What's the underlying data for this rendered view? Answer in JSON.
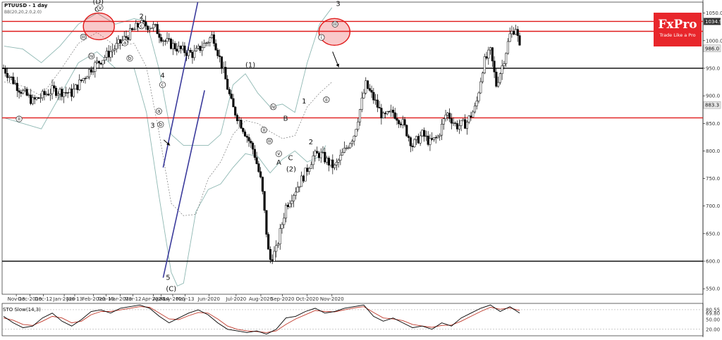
{
  "instrument": "PTUUSD - 1 day",
  "indicator_label": "BB(20,20,2.0,2.0)",
  "oscillator_label": "STO Slow(14,3)",
  "brand": {
    "name": "FxPro",
    "tagline": "Trade Like a Pro",
    "color": "#e8262b"
  },
  "colors": {
    "bull": "#1e8c1e",
    "bear": "#d01010",
    "wick": "#000000",
    "channel": "#3b3b9c",
    "resistance": "#e01a1a",
    "support": "#000000",
    "bb": "#8fb8b3",
    "sto_k": "#000000",
    "sto_d": "#c0392b"
  },
  "chart_data": {
    "type": "line",
    "title": "PTUUSD - 1 day",
    "ylim": [
      540,
      1070
    ],
    "yticks": [
      "1050.0",
      "1000.0",
      "950.0",
      "900.0",
      "850.0",
      "800.0",
      "750.0",
      "700.0",
      "650.0",
      "600.0",
      "550.0"
    ],
    "x_labels": [
      "Nov-13",
      "Dec-2019",
      "Dec-12",
      "Jan-2020",
      "Jan-13",
      "Feb-2020",
      "Feb-13",
      "Mar-2020",
      "Mar-12",
      "Apr-2020",
      "Apr-14",
      "May-2020",
      "May-13",
      "Jun-2020",
      "Jul-2020",
      "Aug-2020",
      "Sep-2020",
      "Oct-2020",
      "Nov-2020"
    ],
    "price_tags": [
      {
        "text": "1034.9",
        "value": 1034.9,
        "style": "dark"
      },
      {
        "text": "986.0",
        "value": 986.0,
        "style": "light"
      },
      {
        "text": "883.3",
        "value": 883.3,
        "style": "light"
      }
    ],
    "horizontal_levels": [
      {
        "value": 1035,
        "kind": "resistance"
      },
      {
        "value": 1017,
        "kind": "resistance"
      },
      {
        "value": 950,
        "kind": "support"
      },
      {
        "value": 860,
        "kind": "resistance"
      },
      {
        "value": 600,
        "kind": "support"
      }
    ],
    "channel": {
      "upper": [
        [
          25.7,
          770
        ],
        [
          31.3,
          1070
        ]
      ],
      "lower": [
        [
          25.7,
          570
        ],
        [
          32.4,
          910
        ]
      ]
    },
    "close_path": [
      [
        0,
        950
      ],
      [
        1.5,
        915
      ],
      [
        3,
        890
      ],
      [
        5,
        910
      ],
      [
        7,
        905
      ],
      [
        9,
        950
      ],
      [
        11,
        980
      ],
      [
        12.5,
        1005
      ],
      [
        14,
        1030
      ],
      [
        15.5,
        1025
      ],
      [
        16.5,
        1000
      ],
      [
        18,
        985
      ],
      [
        19.5,
        975
      ],
      [
        21,
        1000
      ],
      [
        21.5,
        1010
      ],
      [
        22.5,
        950
      ],
      [
        23.5,
        880
      ],
      [
        24.5,
        845
      ],
      [
        25.7,
        800
      ],
      [
        26.5,
        740
      ],
      [
        27.3,
        600
      ],
      [
        28,
        620
      ],
      [
        29,
        700
      ],
      [
        30,
        730
      ],
      [
        31,
        760
      ],
      [
        31.8,
        790
      ],
      [
        32.5,
        795
      ],
      [
        33.3,
        780
      ],
      [
        34,
        770
      ],
      [
        35,
        800
      ],
      [
        36,
        830
      ],
      [
        37.2,
        920
      ],
      [
        38,
        895
      ],
      [
        39,
        860
      ],
      [
        40,
        870
      ],
      [
        41,
        850
      ],
      [
        42,
        810
      ],
      [
        43,
        830
      ],
      [
        43.8,
        815
      ],
      [
        44.6,
        825
      ],
      [
        45.5,
        870
      ],
      [
        46.5,
        845
      ],
      [
        47.5,
        850
      ],
      [
        48.5,
        880
      ],
      [
        49.3,
        960
      ],
      [
        50,
        980
      ],
      [
        50.6,
        920
      ],
      [
        51.3,
        960
      ],
      [
        52,
        1010
      ],
      [
        52.6,
        1025
      ],
      [
        53,
        985
      ]
    ],
    "bb_upper": [
      [
        0,
        990
      ],
      [
        3,
        985
      ],
      [
        6,
        960
      ],
      [
        9,
        990
      ],
      [
        12,
        1030
      ],
      [
        15,
        1050
      ],
      [
        18,
        1030
      ],
      [
        21,
        1040
      ],
      [
        23,
        1035
      ],
      [
        25,
        950
      ],
      [
        27,
        830
      ],
      [
        29,
        810
      ],
      [
        31,
        810
      ],
      [
        33,
        810
      ],
      [
        35,
        830
      ],
      [
        37,
        920
      ],
      [
        39,
        940
      ],
      [
        41,
        905
      ],
      [
        43,
        880
      ],
      [
        45,
        885
      ],
      [
        47,
        870
      ],
      [
        49,
        960
      ],
      [
        51,
        1030
      ],
      [
        53,
        1060
      ]
    ],
    "bb_lower": [
      [
        0,
        860
      ],
      [
        3,
        850
      ],
      [
        6,
        840
      ],
      [
        9,
        900
      ],
      [
        12,
        960
      ],
      [
        15,
        980
      ],
      [
        18,
        950
      ],
      [
        21,
        950
      ],
      [
        23,
        870
      ],
      [
        25,
        720
      ],
      [
        27,
        580
      ],
      [
        28,
        555
      ],
      [
        29,
        560
      ],
      [
        31,
        690
      ],
      [
        33,
        730
      ],
      [
        35,
        740
      ],
      [
        37,
        770
      ],
      [
        39,
        795
      ],
      [
        41,
        790
      ],
      [
        43,
        760
      ],
      [
        45,
        785
      ],
      [
        47,
        800
      ],
      [
        49,
        780
      ],
      [
        51,
        790
      ],
      [
        52,
        810
      ]
    ],
    "wave_labels": [
      {
        "text": "(D)",
        "x": 15.2,
        "y": 1067,
        "size": "big"
      },
      {
        "text": "C",
        "x": 15.0,
        "y": 1053,
        "size": "big"
      },
      {
        "text": "2",
        "x": 22.2,
        "y": 1040,
        "size": "big"
      },
      {
        "text": "4",
        "x": 25.6,
        "y": 933,
        "size": "big"
      },
      {
        "text": "3",
        "x": 24.0,
        "y": 842,
        "size": "big"
      },
      {
        "text": "5",
        "x": 26.5,
        "y": 566,
        "size": "big"
      },
      {
        "text": "(C)",
        "x": 27.0,
        "y": 546,
        "size": "big"
      },
      {
        "text": "(1)",
        "x": 39.8,
        "y": 952,
        "size": "big"
      },
      {
        "text": "B",
        "x": 45.5,
        "y": 855,
        "size": "big"
      },
      {
        "text": "1",
        "x": 48.5,
        "y": 886,
        "size": "big"
      },
      {
        "text": "C",
        "x": 46.3,
        "y": 783,
        "size": "big"
      },
      {
        "text": "A",
        "x": 44.4,
        "y": 775,
        "size": "big"
      },
      {
        "text": "(2)",
        "x": 46.4,
        "y": 763,
        "size": "big"
      },
      {
        "text": "2",
        "x": 49.6,
        "y": 812,
        "size": "big"
      },
      {
        "text": "3",
        "x": 54.0,
        "y": 1063,
        "size": "big"
      }
    ],
    "circle_labels": [
      {
        "text": "v",
        "x": 15.5,
        "y": 1060
      },
      {
        "text": "iii",
        "x": 12.8,
        "y": 1007
      },
      {
        "text": "iv",
        "x": 14.1,
        "y": 972
      },
      {
        "text": "c",
        "x": 22.2,
        "y": 1027
      },
      {
        "text": "a",
        "x": 19.5,
        "y": 996
      },
      {
        "text": "b",
        "x": 20.3,
        "y": 968
      },
      {
        "text": "c",
        "x": 25.6,
        "y": 920
      },
      {
        "text": "a",
        "x": 25.0,
        "y": 872
      },
      {
        "text": "b",
        "x": 25.3,
        "y": 848
      },
      {
        "text": "ii",
        "x": 2.4,
        "y": 858
      },
      {
        "text": "iv",
        "x": 43.5,
        "y": 880
      },
      {
        "text": "ii",
        "x": 42.0,
        "y": 838
      },
      {
        "text": "iii",
        "x": 42.9,
        "y": 818
      },
      {
        "text": "v",
        "x": 44.4,
        "y": 795
      },
      {
        "text": "i",
        "x": 51.3,
        "y": 1006
      },
      {
        "text": "ii",
        "x": 52.1,
        "y": 893
      },
      {
        "text": "iii",
        "x": 53.5,
        "y": 1030
      }
    ],
    "highlight_ellipses": [
      {
        "cx": 15.3,
        "cy": 1026
      },
      {
        "cx": 53.4,
        "cy": 1016
      }
    ],
    "arrows": [
      {
        "from": [
          53.1,
          980
        ],
        "to": [
          54.1,
          952
        ]
      },
      {
        "from": [
          25.8,
          820
        ],
        "to": [
          26.8,
          810
        ]
      }
    ],
    "sto_yticks": [
      "80.55",
      "69.80",
      "50.00",
      "20.00"
    ],
    "sto_ylim": [
      0,
      100
    ],
    "sto_k": [
      [
        0,
        60
      ],
      [
        1,
        40
      ],
      [
        2,
        25
      ],
      [
        3,
        30
      ],
      [
        4,
        55
      ],
      [
        5,
        70
      ],
      [
        6,
        45
      ],
      [
        7,
        30
      ],
      [
        8,
        50
      ],
      [
        9,
        75
      ],
      [
        10,
        80
      ],
      [
        11,
        70
      ],
      [
        12,
        85
      ],
      [
        13,
        90
      ],
      [
        14,
        95
      ],
      [
        15,
        85
      ],
      [
        16,
        60
      ],
      [
        17,
        40
      ],
      [
        18,
        55
      ],
      [
        19,
        70
      ],
      [
        20,
        80
      ],
      [
        21,
        65
      ],
      [
        22,
        40
      ],
      [
        23,
        20
      ],
      [
        24,
        15
      ],
      [
        25,
        10
      ],
      [
        26,
        15
      ],
      [
        27,
        5
      ],
      [
        28,
        20
      ],
      [
        29,
        55
      ],
      [
        30,
        60
      ],
      [
        31,
        75
      ],
      [
        32,
        85
      ],
      [
        33,
        70
      ],
      [
        34,
        75
      ],
      [
        35,
        85
      ],
      [
        36,
        90
      ],
      [
        37,
        95
      ],
      [
        38,
        60
      ],
      [
        39,
        45
      ],
      [
        40,
        55
      ],
      [
        41,
        40
      ],
      [
        42,
        25
      ],
      [
        43,
        30
      ],
      [
        44,
        20
      ],
      [
        45,
        40
      ],
      [
        46,
        30
      ],
      [
        47,
        55
      ],
      [
        48,
        70
      ],
      [
        49,
        85
      ],
      [
        50,
        95
      ],
      [
        51,
        75
      ],
      [
        52,
        90
      ],
      [
        53,
        70
      ]
    ],
    "sto_d": [
      [
        0,
        55
      ],
      [
        1,
        48
      ],
      [
        2,
        35
      ],
      [
        3,
        32
      ],
      [
        4,
        45
      ],
      [
        5,
        60
      ],
      [
        6,
        55
      ],
      [
        7,
        40
      ],
      [
        8,
        45
      ],
      [
        9,
        65
      ],
      [
        10,
        75
      ],
      [
        11,
        75
      ],
      [
        12,
        80
      ],
      [
        13,
        85
      ],
      [
        14,
        90
      ],
      [
        15,
        88
      ],
      [
        16,
        70
      ],
      [
        17,
        52
      ],
      [
        18,
        50
      ],
      [
        19,
        62
      ],
      [
        20,
        72
      ],
      [
        21,
        70
      ],
      [
        22,
        52
      ],
      [
        23,
        30
      ],
      [
        24,
        20
      ],
      [
        25,
        15
      ],
      [
        26,
        13
      ],
      [
        27,
        10
      ],
      [
        28,
        15
      ],
      [
        29,
        35
      ],
      [
        30,
        52
      ],
      [
        31,
        65
      ],
      [
        32,
        78
      ],
      [
        33,
        75
      ],
      [
        34,
        74
      ],
      [
        35,
        80
      ],
      [
        36,
        86
      ],
      [
        37,
        90
      ],
      [
        38,
        72
      ],
      [
        39,
        55
      ],
      [
        40,
        52
      ],
      [
        41,
        47
      ],
      [
        42,
        35
      ],
      [
        43,
        30
      ],
      [
        44,
        26
      ],
      [
        45,
        32
      ],
      [
        46,
        33
      ],
      [
        47,
        45
      ],
      [
        48,
        60
      ],
      [
        49,
        75
      ],
      [
        50,
        88
      ],
      [
        51,
        82
      ],
      [
        52,
        86
      ],
      [
        53,
        78
      ]
    ]
  }
}
